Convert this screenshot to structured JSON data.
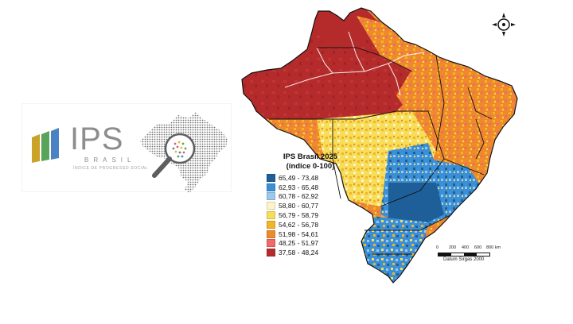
{
  "logo": {
    "brand": "IPS",
    "sub": "BRASIL",
    "tagline": "ÍNDICE DE PROGRESSO SOCIAL",
    "bar_colors": [
      "#c9a227",
      "#5aa35a",
      "#4a82c3"
    ]
  },
  "legend": {
    "title": "IPS Brasil 2025",
    "subtitle": "(índice 0-100)",
    "items": [
      {
        "label": "65,49 - 73,48",
        "color": "#1f5f99"
      },
      {
        "label": "62,93 - 65,48",
        "color": "#3a8fd6"
      },
      {
        "label": "60,78 - 62,92",
        "color": "#9cc8ec"
      },
      {
        "label": "58,80 - 60,77",
        "color": "#fff4c8"
      },
      {
        "label": "56,79 - 58,79",
        "color": "#f6de5a"
      },
      {
        "label": "54,62 - 56,78",
        "color": "#f2b42a"
      },
      {
        "label": "51,98 - 54,61",
        "color": "#ee8a2a"
      },
      {
        "label": "48,25 - 51,97",
        "color": "#ef6a6a"
      },
      {
        "label": "37,58 - 48,24",
        "color": "#b52b2b"
      }
    ]
  },
  "scalebar": {
    "ticks": [
      "0",
      "200",
      "400",
      "600",
      "800 km"
    ],
    "datum": "Datum Sirgas 2000"
  }
}
